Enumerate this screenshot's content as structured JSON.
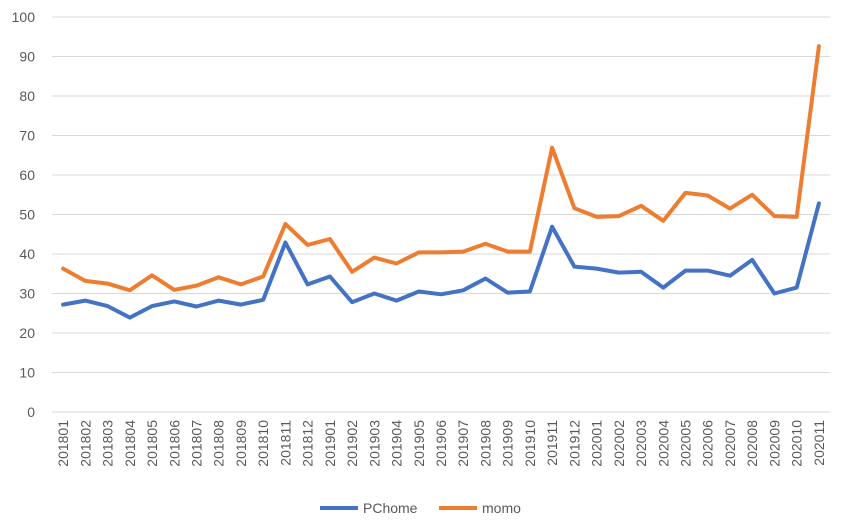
{
  "chart_data": {
    "type": "line",
    "title": "",
    "xlabel": "",
    "ylabel": "",
    "ylim": [
      0,
      100
    ],
    "yticks": [
      0,
      10,
      20,
      30,
      40,
      50,
      60,
      70,
      80,
      90,
      100
    ],
    "grid": true,
    "legend_position": "bottom",
    "categories": [
      "201801",
      "201802",
      "201803",
      "201804",
      "201805",
      "201806",
      "201807",
      "201808",
      "201809",
      "201810",
      "201811",
      "201812",
      "201901",
      "201902",
      "201903",
      "201904",
      "201905",
      "201906",
      "201907",
      "201908",
      "201909",
      "201910",
      "201911",
      "201912",
      "202001",
      "202002",
      "202003",
      "202004",
      "202005",
      "202006",
      "202007",
      "202008",
      "202009",
      "202010",
      "202011"
    ],
    "series": [
      {
        "name": "PChome",
        "color": "#4472C4",
        "values": [
          27.2,
          28.2,
          26.8,
          23.9,
          26.8,
          28.0,
          26.7,
          28.2,
          27.2,
          28.4,
          42.9,
          32.3,
          34.3,
          27.8,
          30.0,
          28.2,
          30.5,
          29.8,
          30.8,
          33.8,
          30.2,
          30.5,
          46.9,
          36.8,
          36.3,
          35.3,
          35.5,
          31.5,
          35.8,
          35.8,
          34.5,
          38.5,
          30.0,
          31.5,
          52.8
        ]
      },
      {
        "name": "momo",
        "color": "#ED7D31",
        "values": [
          36.3,
          33.2,
          32.5,
          30.8,
          34.6,
          30.9,
          32.0,
          34.1,
          32.3,
          34.3,
          47.6,
          42.3,
          43.8,
          35.5,
          39.1,
          37.6,
          40.4,
          40.4,
          40.6,
          42.6,
          40.6,
          40.6,
          66.9,
          51.6,
          49.4,
          49.6,
          52.2,
          48.4,
          55.5,
          54.8,
          51.5,
          55.0,
          49.6,
          49.4,
          92.6
        ]
      }
    ]
  }
}
